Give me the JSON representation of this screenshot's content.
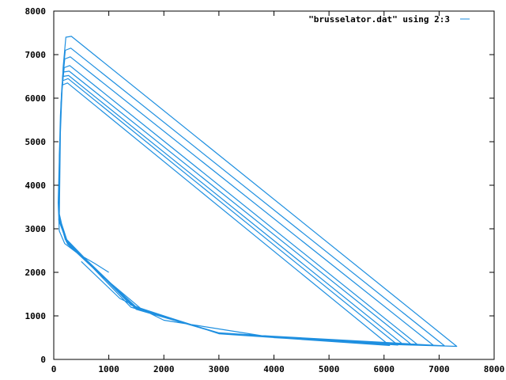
{
  "chart_data": {
    "type": "line",
    "title": "",
    "xlabel": "",
    "ylabel": "",
    "xlim": [
      0,
      8000
    ],
    "ylim": [
      0,
      8000
    ],
    "x_ticks": [
      0,
      1000,
      2000,
      3000,
      4000,
      5000,
      6000,
      7000,
      8000
    ],
    "y_ticks": [
      0,
      1000,
      2000,
      3000,
      4000,
      5000,
      6000,
      7000,
      8000
    ],
    "grid": false,
    "legend_position": "top-right",
    "series": [
      {
        "name": "\"brusselator.dat\" using 2:3",
        "color": "#1e8fe0",
        "points": [
          [
            1000,
            2000
          ],
          [
            750,
            2200
          ],
          [
            450,
            2420
          ],
          [
            200,
            2660
          ],
          [
            100,
            2950
          ],
          [
            80,
            3600
          ],
          [
            100,
            4600
          ],
          [
            120,
            5600
          ],
          [
            150,
            6300
          ],
          [
            250,
            6350
          ],
          [
            6100,
            320
          ],
          [
            3000,
            590
          ],
          [
            1400,
            1250
          ],
          [
            700,
            2150
          ],
          [
            200,
            2800
          ],
          [
            90,
            3400
          ],
          [
            100,
            4700
          ],
          [
            130,
            5800
          ],
          [
            160,
            6400
          ],
          [
            260,
            6450
          ],
          [
            6250,
            330
          ],
          [
            3000,
            600
          ],
          [
            1500,
            1200
          ],
          [
            800,
            2000
          ],
          [
            250,
            2700
          ],
          [
            95,
            3300
          ],
          [
            110,
            4800
          ],
          [
            130,
            5900
          ],
          [
            170,
            6500
          ],
          [
            270,
            6520
          ],
          [
            6350,
            340
          ],
          [
            3000,
            610
          ],
          [
            1400,
            1200
          ],
          [
            600,
            2250
          ],
          [
            220,
            2750
          ],
          [
            90,
            3200
          ],
          [
            110,
            4900
          ],
          [
            140,
            6000
          ],
          [
            180,
            6600
          ],
          [
            280,
            6620
          ],
          [
            6500,
            340
          ],
          [
            3000,
            600
          ],
          [
            1500,
            1150
          ],
          [
            700,
            2150
          ],
          [
            200,
            2800
          ],
          [
            100,
            3300
          ],
          [
            110,
            5000
          ],
          [
            140,
            6100
          ],
          [
            190,
            6700
          ],
          [
            290,
            6750
          ],
          [
            6600,
            350
          ],
          [
            3000,
            600
          ],
          [
            1500,
            1200
          ],
          [
            650,
            2200
          ],
          [
            230,
            2700
          ],
          [
            90,
            3300
          ],
          [
            110,
            5100
          ],
          [
            150,
            6300
          ],
          [
            200,
            6900
          ],
          [
            300,
            6950
          ],
          [
            6900,
            320
          ],
          [
            3000,
            600
          ],
          [
            1500,
            1180
          ],
          [
            750,
            2100
          ],
          [
            210,
            2750
          ],
          [
            100,
            3250
          ],
          [
            120,
            5200
          ],
          [
            160,
            6500
          ],
          [
            210,
            7100
          ],
          [
            310,
            7150
          ],
          [
            7100,
            310
          ],
          [
            3000,
            600
          ],
          [
            1600,
            1150
          ],
          [
            800,
            2000
          ],
          [
            250,
            2650
          ],
          [
            95,
            3200
          ],
          [
            120,
            5300
          ],
          [
            170,
            6700
          ],
          [
            220,
            7400
          ],
          [
            320,
            7420
          ],
          [
            7320,
            300
          ],
          [
            6200,
            340
          ],
          [
            4000,
            500
          ],
          [
            2000,
            900
          ],
          [
            1200,
            1400
          ],
          [
            500,
            2250
          ]
        ]
      }
    ]
  }
}
